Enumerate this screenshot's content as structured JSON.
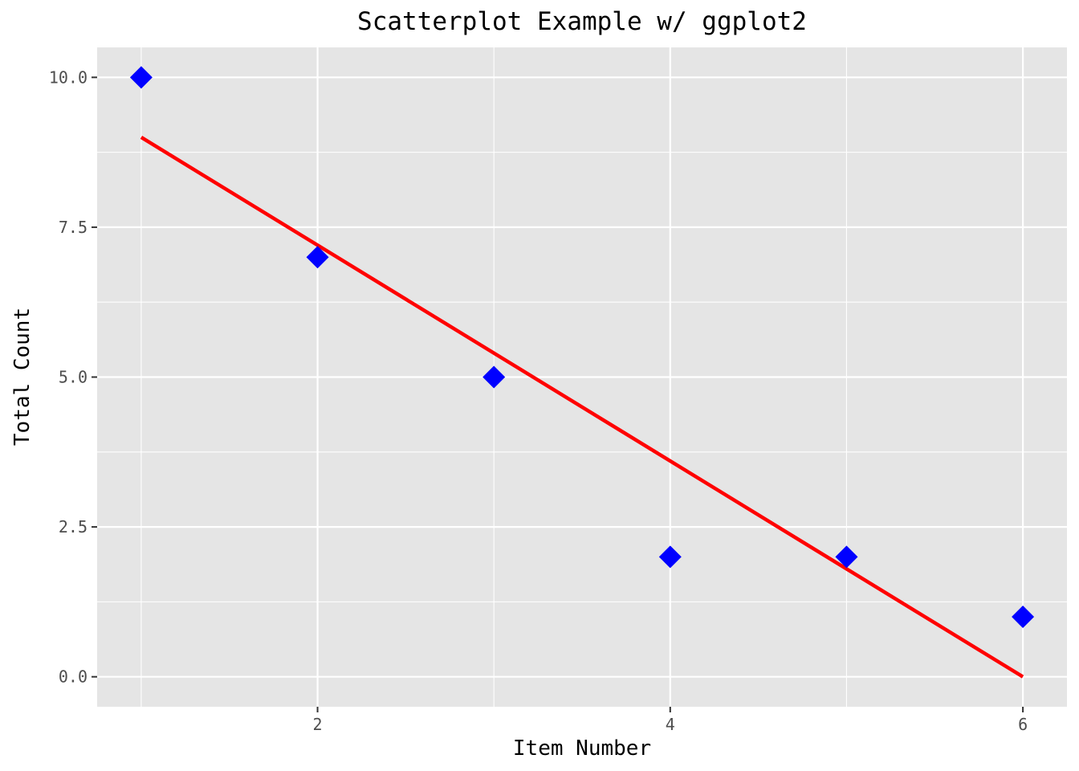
{
  "chart_data": {
    "type": "scatter",
    "title": "Scatterplot Example w/ ggplot2",
    "xlabel": "Item Number",
    "ylabel": "Total Count",
    "xlim": [
      0.75,
      6.25
    ],
    "ylim": [
      -0.5,
      10.5
    ],
    "x_ticks": [
      2,
      4,
      6
    ],
    "x_tick_labels": [
      "2",
      "4",
      "6"
    ],
    "y_ticks": [
      0,
      2.5,
      5,
      7.5,
      10
    ],
    "y_tick_labels": [
      "0.0",
      "2.5",
      "5.0",
      "7.5",
      "10.0"
    ],
    "grid": true,
    "series": [
      {
        "type": "scatter",
        "marker": "diamond",
        "color": "#0000ff",
        "x": [
          1,
          2,
          3,
          4,
          5,
          6
        ],
        "y": [
          10,
          7,
          5,
          2,
          2,
          1
        ]
      },
      {
        "type": "line",
        "color": "#ff0000",
        "x": [
          1,
          6
        ],
        "y": [
          9,
          0
        ]
      }
    ],
    "panel_background": "#e5e5e5",
    "grid_color": "#ffffff"
  }
}
